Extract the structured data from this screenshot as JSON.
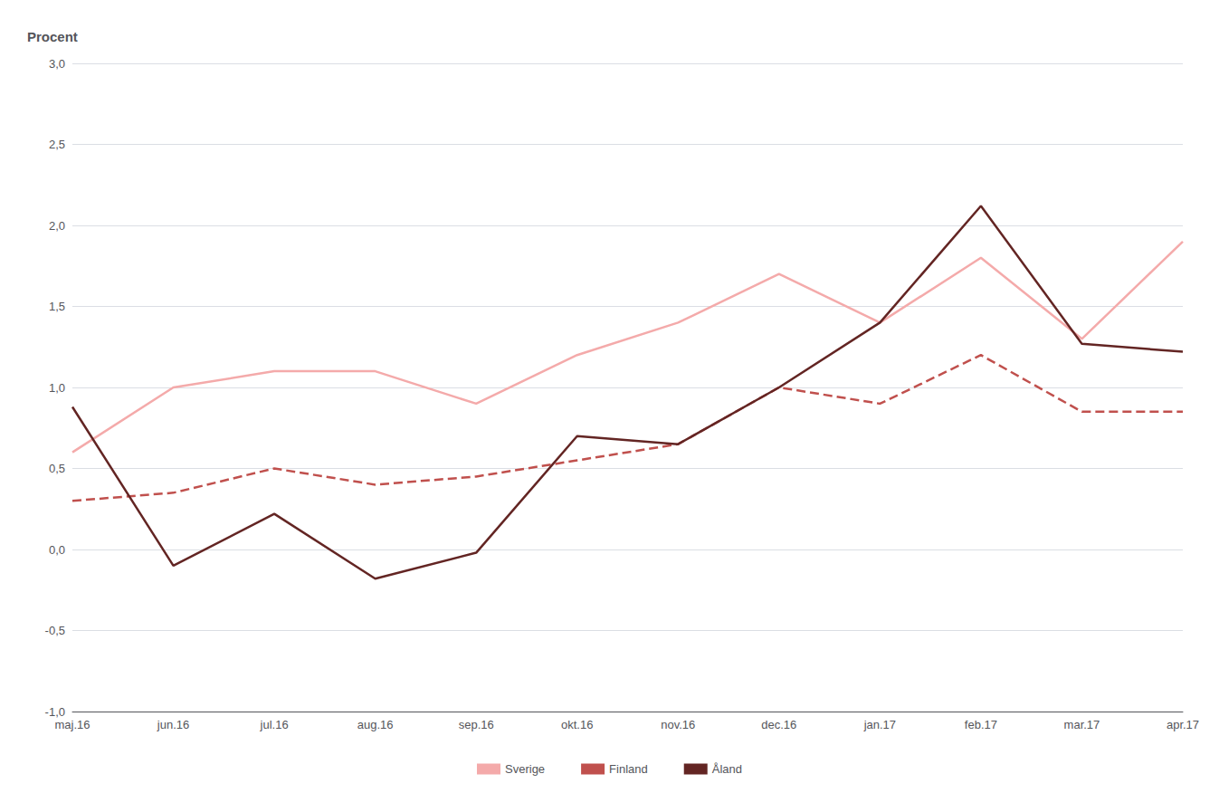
{
  "chart_data": {
    "type": "line",
    "ylabel": "Procent",
    "categories": [
      "maj.16",
      "jun.16",
      "jul.16",
      "aug.16",
      "sep.16",
      "okt.16",
      "nov.16",
      "dec.16",
      "jan.17",
      "feb.17",
      "mar.17",
      "apr.17"
    ],
    "series": [
      {
        "name": "Sverige",
        "color": "#F4AAAA",
        "line_style": "solid",
        "values": [
          0.6,
          1.0,
          1.1,
          1.1,
          0.9,
          1.2,
          1.4,
          1.7,
          1.4,
          1.8,
          1.3,
          1.9
        ]
      },
      {
        "name": "Finland",
        "color": "#C0504D",
        "line_style": "dashed",
        "values": [
          0.3,
          0.35,
          0.5,
          0.4,
          0.45,
          0.55,
          0.65,
          1.0,
          0.9,
          1.2,
          0.85,
          0.85
        ]
      },
      {
        "name": "Åland",
        "color": "#632523",
        "line_style": "solid",
        "values": [
          0.88,
          -0.1,
          0.22,
          -0.18,
          -0.02,
          0.7,
          0.65,
          1.0,
          1.4,
          2.12,
          1.27,
          1.22
        ]
      }
    ],
    "ylim": [
      -1.0,
      3.0
    ],
    "yticks": [
      {
        "value": -1.0,
        "label": "-1,0"
      },
      {
        "value": -0.5,
        "label": "-0,5"
      },
      {
        "value": 0.0,
        "label": "0,0"
      },
      {
        "value": 0.5,
        "label": "0,5"
      },
      {
        "value": 1.0,
        "label": "1,0"
      },
      {
        "value": 1.5,
        "label": "1,5"
      },
      {
        "value": 2.0,
        "label": "2,0"
      },
      {
        "value": 2.5,
        "label": "2,5"
      },
      {
        "value": 3.0,
        "label": "3,0"
      }
    ],
    "grid": true,
    "legend": "bottom"
  }
}
